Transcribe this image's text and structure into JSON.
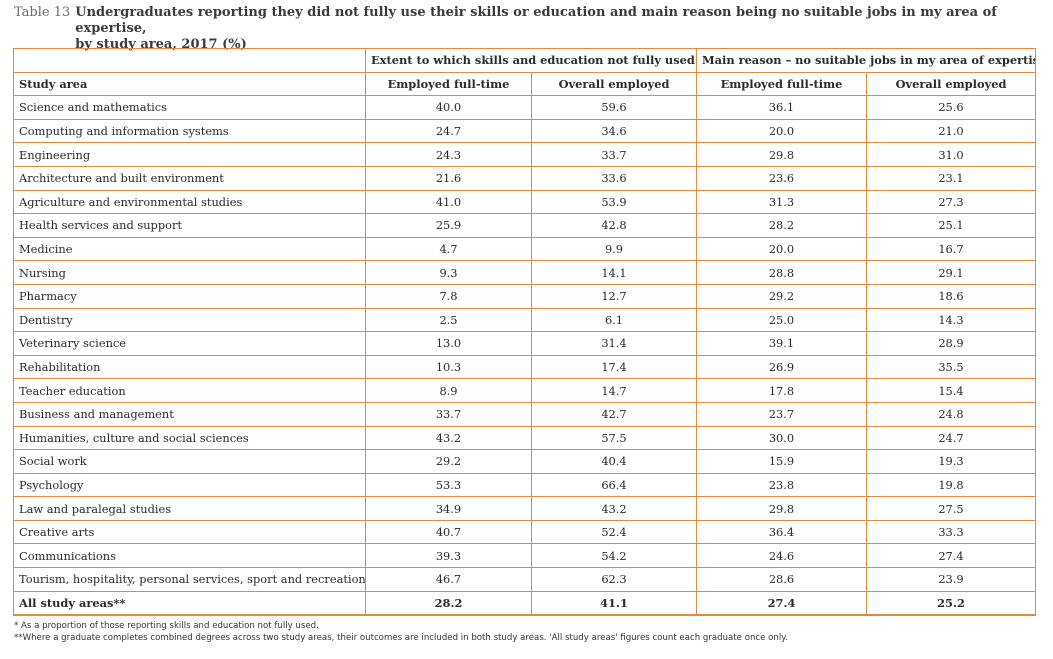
{
  "title": {
    "label": "Table 13",
    "line1": "Undergraduates reporting they did not fully use their skills or education and main reason being no suitable jobs in my area of expertise,",
    "line2": "by study area, 2017 (%)"
  },
  "table": {
    "group_headers": [
      "Extent to which skills and education not fully used",
      "Main reason – no suitable jobs in my area of expertise*"
    ],
    "columns": [
      "Study area",
      "Employed full-time",
      "Overall employed",
      "Employed full-time",
      "Overall employed"
    ],
    "rows": [
      [
        "Science and mathematics",
        "40.0",
        "59.6",
        "36.1",
        "25.6"
      ],
      [
        "Computing and information systems",
        "24.7",
        "34.6",
        "20.0",
        "21.0"
      ],
      [
        "Engineering",
        "24.3",
        "33.7",
        "29.8",
        "31.0"
      ],
      [
        "Architecture and built environment",
        "21.6",
        "33.6",
        "23.6",
        "23.1"
      ],
      [
        "Agriculture and environmental studies",
        "41.0",
        "53.9",
        "31.3",
        "27.3"
      ],
      [
        "Health services and support",
        "25.9",
        "42.8",
        "28.2",
        "25.1"
      ],
      [
        "Medicine",
        "4.7",
        "9.9",
        "20.0",
        "16.7"
      ],
      [
        "Nursing",
        "9.3",
        "14.1",
        "28.8",
        "29.1"
      ],
      [
        "Pharmacy",
        "7.8",
        "12.7",
        "29.2",
        "18.6"
      ],
      [
        "Dentistry",
        "2.5",
        "6.1",
        "25.0",
        "14.3"
      ],
      [
        "Veterinary science",
        "13.0",
        "31.4",
        "39.1",
        "28.9"
      ],
      [
        "Rehabilitation",
        "10.3",
        "17.4",
        "26.9",
        "35.5"
      ],
      [
        "Teacher education",
        "8.9",
        "14.7",
        "17.8",
        "15.4"
      ],
      [
        "Business and management",
        "33.7",
        "42.7",
        "23.7",
        "24.8"
      ],
      [
        "Humanities, culture and social sciences",
        "43.2",
        "57.5",
        "30.0",
        "24.7"
      ],
      [
        "Social work",
        "29.2",
        "40.4",
        "15.9",
        "19.3"
      ],
      [
        "Psychology",
        "53.3",
        "66.4",
        "23.8",
        "19.8"
      ],
      [
        "Law and paralegal studies",
        "34.9",
        "43.2",
        "29.8",
        "27.5"
      ],
      [
        "Creative arts",
        "40.7",
        "52.4",
        "36.4",
        "33.3"
      ],
      [
        "Communications",
        "39.3",
        "54.2",
        "24.6",
        "27.4"
      ],
      [
        "Tourism, hospitality, personal services, sport and recreation",
        "46.7",
        "62.3",
        "28.6",
        "23.9"
      ]
    ],
    "total": [
      "All study areas**",
      "28.2",
      "41.1",
      "27.4",
      "25.2"
    ]
  },
  "notes": [
    "* As a proportion of those reporting skills and education not fully used.",
    "**Where a graduate completes combined degrees across two study areas, their outcomes are included in both study areas. 'All study areas' figures count each graduate once only."
  ],
  "colors": {
    "border": "#e58a3c"
  }
}
